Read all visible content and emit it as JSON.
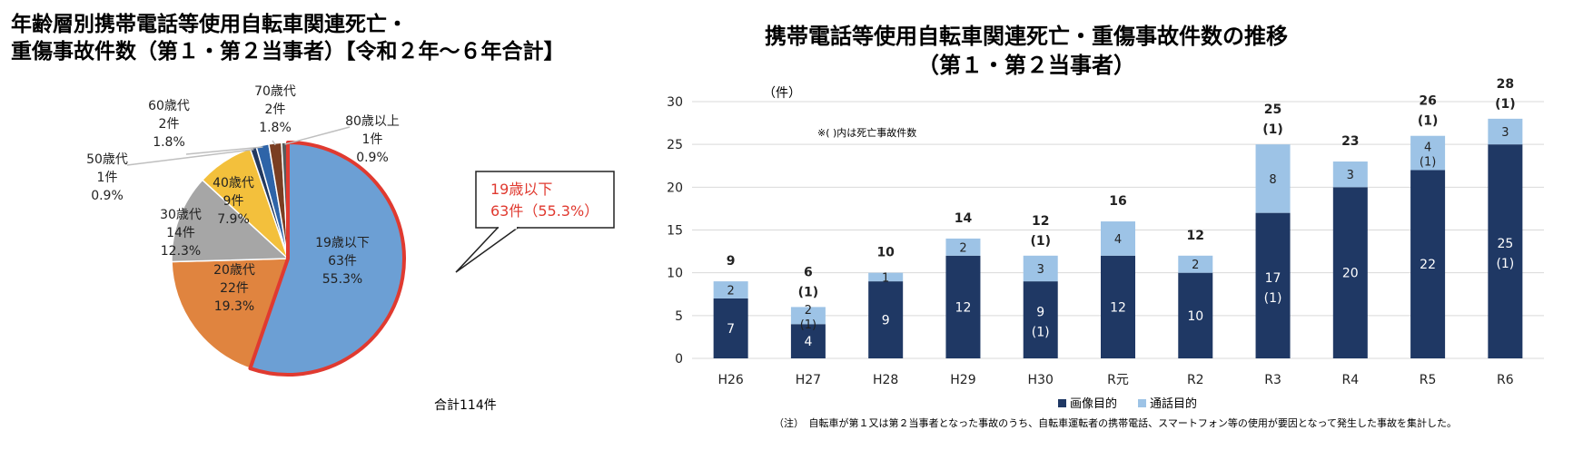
{
  "colors": {
    "pie": [
      "#6c9fd4",
      "#e0843f",
      "#a6a6a6",
      "#f3c03c",
      "#23395f",
      "#2e64a8",
      "#7a3e22",
      "#5a5a5a"
    ],
    "highlight_border": "#e03a30",
    "dark_bar": "#1f3864",
    "light_bar": "#9dc3e6",
    "callout_text": "#e03a30"
  },
  "chart_data": [
    {
      "type": "pie",
      "title_line1": "年齢層別携帯電話等使用自転車関連死亡・",
      "title_line2": "重傷事故件数（第１・第２当事者）【令和２年～６年合計】",
      "slices": [
        {
          "name": "19歳以下",
          "count": "63件",
          "percent": "55.3%",
          "value": 63
        },
        {
          "name": "20歳代",
          "count": "22件",
          "percent": "19.3%",
          "value": 22
        },
        {
          "name": "30歳代",
          "count": "14件",
          "percent": "12.3%",
          "value": 14
        },
        {
          "name": "40歳代",
          "count": "9件",
          "percent": "7.9%",
          "value": 9
        },
        {
          "name": "50歳代",
          "count": "1件",
          "percent": "0.9%",
          "value": 1
        },
        {
          "name": "60歳代",
          "count": "2件",
          "percent": "1.8%",
          "value": 2
        },
        {
          "name": "70歳代",
          "count": "2件",
          "percent": "1.8%",
          "value": 2
        },
        {
          "name": "80歳以上",
          "count": "1件",
          "percent": "0.9%",
          "value": 1
        }
      ],
      "callout": {
        "line1": "19歳以下",
        "line2": "63件（55.3%）"
      },
      "total": "合計114件"
    },
    {
      "type": "bar",
      "stacked": true,
      "title_line1": "携帯電話等使用自転車関連死亡・重傷事故件数の推移",
      "title_line2": "（第１・第２当事者）",
      "y_unit": "（件）",
      "note": "※(  )内は死亡事故件数",
      "ylim": [
        0,
        30
      ],
      "yticks": [
        "0",
        "5",
        "10",
        "15",
        "20",
        "25",
        "30"
      ],
      "categories": [
        "H26",
        "H27",
        "H28",
        "H29",
        "H30",
        "R元",
        "R2",
        "R3",
        "R4",
        "R5",
        "R6"
      ],
      "series": [
        {
          "name": "画像目的",
          "values": [
            7,
            4,
            9,
            12,
            9,
            12,
            10,
            17,
            20,
            22,
            25
          ],
          "deaths": [
            "",
            "",
            "",
            "",
            "(1)",
            "",
            "",
            "(1)",
            "",
            "",
            "(1)"
          ]
        },
        {
          "name": "通話目的",
          "values": [
            2,
            2,
            1,
            2,
            3,
            4,
            2,
            8,
            3,
            4,
            3
          ],
          "deaths": [
            "",
            "(1)",
            "",
            "",
            "",
            "",
            "",
            "",
            "",
            "(1)",
            ""
          ]
        }
      ],
      "totals": [
        "9",
        "6",
        "10",
        "14",
        "12",
        "16",
        "12",
        "25",
        "23",
        "26",
        "28"
      ],
      "total_deaths": [
        "",
        "(1)",
        "",
        "",
        "(1)",
        "",
        "",
        "(1)",
        "",
        "(1)",
        "(1)"
      ],
      "footnote": "（注）　自転車が第１又は第２当事者となった事故のうち、自転車運転者の携帯電話、スマートフォン等の使用が要因となって発生した事故を集計した。"
    }
  ]
}
